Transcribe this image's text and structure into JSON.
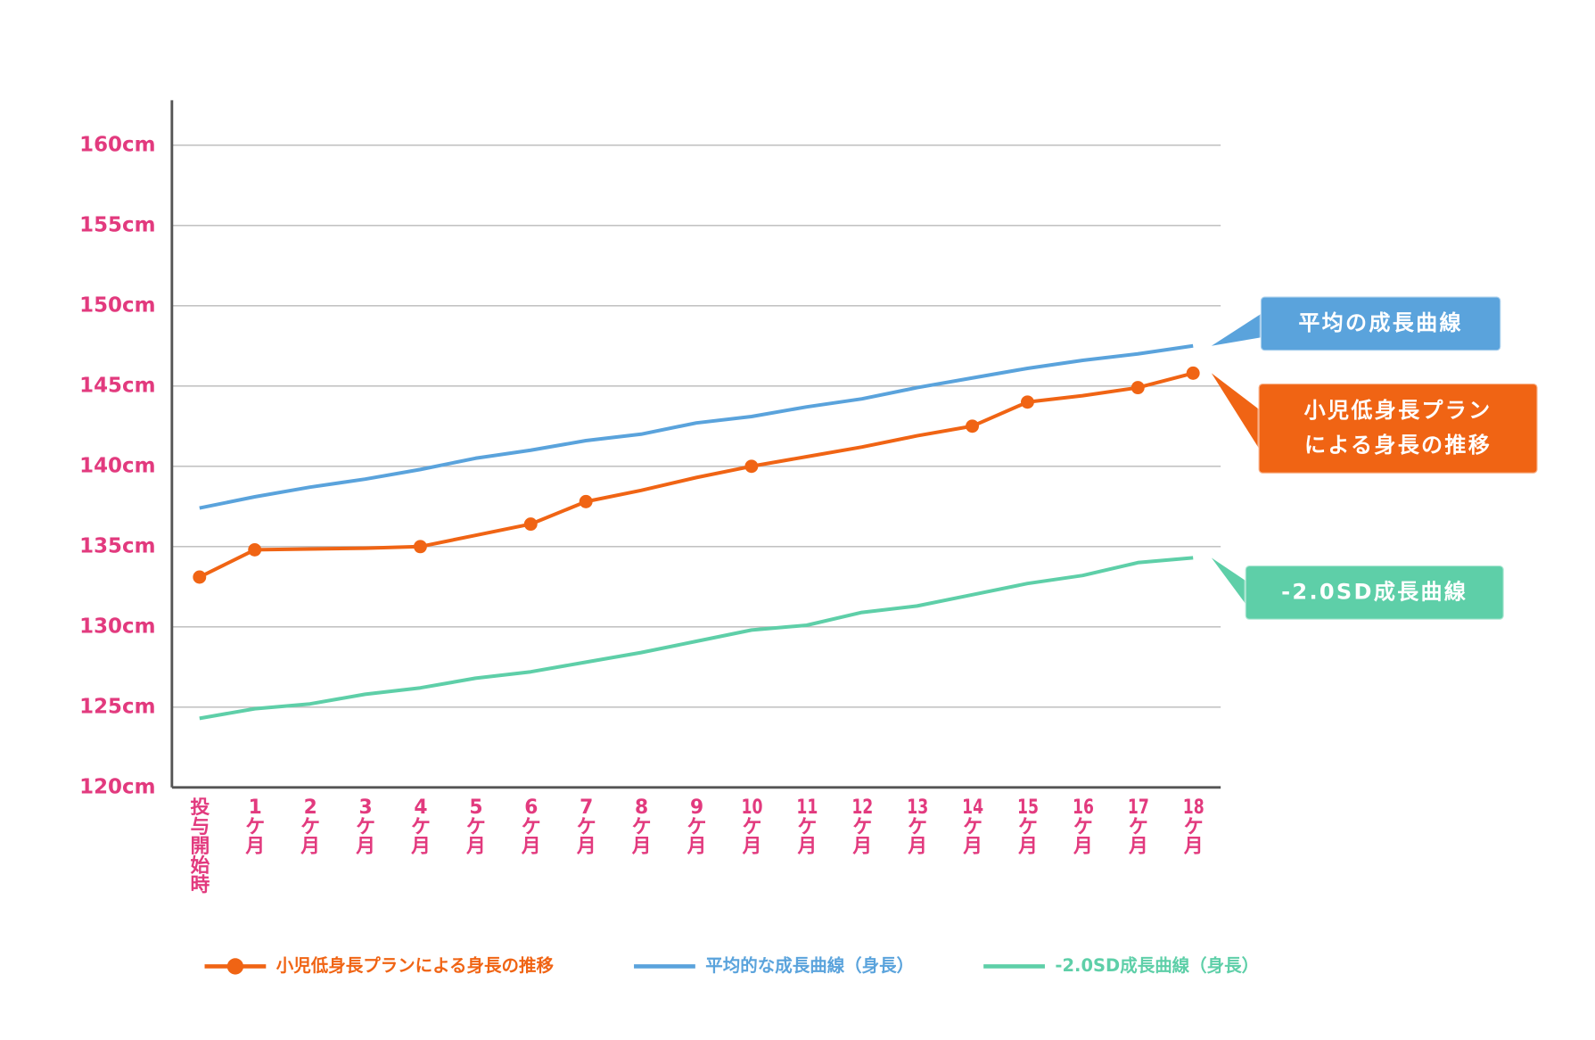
{
  "chart_data": {
    "type": "line",
    "categories": [
      "投与開始時",
      "1ケ月",
      "2ケ月",
      "3ケ月",
      "4ケ月",
      "5ケ月",
      "6ケ月",
      "7ケ月",
      "8ケ月",
      "9ケ月",
      "10ケ月",
      "11ケ月",
      "12ケ月",
      "13ケ月",
      "14ケ月",
      "15ケ月",
      "16ケ月",
      "17ケ月",
      "18ケ月"
    ],
    "series": [
      {
        "name": "小児低身長プランによる身長の推移",
        "color": "#f06414",
        "callout": "小児低身長プラン\nによる身長の推移",
        "values": [
          133.1,
          134.8,
          134.85,
          134.9,
          135.0,
          135.7,
          136.4,
          137.8,
          138.5,
          139.3,
          140.0,
          140.6,
          141.2,
          141.9,
          142.5,
          144.0,
          144.4,
          144.9,
          145.8
        ],
        "markers": [
          true,
          true,
          false,
          false,
          true,
          false,
          true,
          true,
          false,
          false,
          true,
          false,
          false,
          false,
          true,
          true,
          false,
          true,
          true
        ]
      },
      {
        "name": "平均的な成長曲線（身長）",
        "color": "#5aa3dc",
        "callout": "平均の成長曲線",
        "values": [
          137.4,
          138.1,
          138.7,
          139.2,
          139.8,
          140.5,
          141.0,
          141.6,
          142.0,
          142.7,
          143.1,
          143.7,
          144.2,
          144.9,
          145.5,
          146.1,
          146.6,
          147.0,
          147.5
        ]
      },
      {
        "name": "-2.0SD成長曲線（身長）",
        "color": "#5ecfa8",
        "callout": "-2.0SD成長曲線",
        "values": [
          124.3,
          124.9,
          125.2,
          125.8,
          126.2,
          126.8,
          127.2,
          127.8,
          128.4,
          129.1,
          129.8,
          130.1,
          130.9,
          131.3,
          132.0,
          132.7,
          133.2,
          134.0,
          134.3
        ]
      }
    ],
    "ylim": [
      120,
      162.8
    ],
    "yticks": [
      {
        "value": 120,
        "label": "120cm"
      },
      {
        "value": 125,
        "label": "125cm"
      },
      {
        "value": 130,
        "label": "130cm"
      },
      {
        "value": 135,
        "label": "135cm"
      },
      {
        "value": 140,
        "label": "140cm"
      },
      {
        "value": 145,
        "label": "145cm"
      },
      {
        "value": 150,
        "label": "150cm"
      },
      {
        "value": 155,
        "label": "155cm"
      },
      {
        "value": 160,
        "label": "160cm"
      }
    ],
    "grid": true,
    "legend": "bottom"
  }
}
